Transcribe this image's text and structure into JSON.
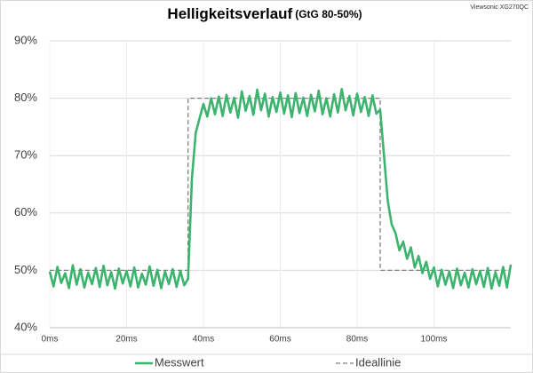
{
  "chart_data": {
    "type": "line",
    "title": "Helligkeitsverlauf",
    "subtitle": "(GtG 80-50%)",
    "source": "Viewsonic XG270QC",
    "xlim": [
      0,
      120
    ],
    "xticks": [
      {
        "value": 0,
        "label": "0ms"
      },
      {
        "value": 20,
        "label": "20ms"
      },
      {
        "value": 40,
        "label": "40ms"
      },
      {
        "value": 60,
        "label": "60ms"
      },
      {
        "value": 80,
        "label": "80ms"
      },
      {
        "value": 100,
        "label": "100ms"
      }
    ],
    "ylim": [
      40,
      90
    ],
    "yticks": [
      {
        "value": 40,
        "label": "40%"
      },
      {
        "value": 50,
        "label": "50%"
      },
      {
        "value": 60,
        "label": "60%"
      },
      {
        "value": 70,
        "label": "70%"
      },
      {
        "value": 80,
        "label": "80%"
      },
      {
        "value": 90,
        "label": "90%"
      }
    ],
    "grid": true,
    "legend": "bottom",
    "series": [
      {
        "name": "Ideallinie",
        "color": "#808080",
        "dashed": true,
        "x": [
          0,
          36,
          36,
          86,
          86,
          120
        ],
        "values": [
          50,
          50,
          80,
          80,
          50,
          50
        ]
      },
      {
        "name": "Messwert",
        "color": "#3cb46e",
        "x": [
          0,
          1,
          2,
          3,
          4,
          5,
          6,
          7,
          8,
          9,
          10,
          11,
          12,
          13,
          14,
          15,
          16,
          17,
          18,
          19,
          20,
          21,
          22,
          23,
          24,
          25,
          26,
          27,
          28,
          29,
          30,
          31,
          32,
          33,
          34,
          35,
          36,
          37,
          38,
          39,
          40,
          41,
          42,
          43,
          44,
          45,
          46,
          47,
          48,
          49,
          50,
          51,
          52,
          53,
          54,
          55,
          56,
          57,
          58,
          59,
          60,
          61,
          62,
          63,
          64,
          65,
          66,
          67,
          68,
          69,
          70,
          71,
          72,
          73,
          74,
          75,
          76,
          77,
          78,
          79,
          80,
          81,
          82,
          83,
          84,
          85,
          86,
          87,
          88,
          89,
          90,
          91,
          92,
          93,
          94,
          95,
          96,
          97,
          98,
          99,
          100,
          101,
          102,
          103,
          104,
          105,
          106,
          107,
          108,
          109,
          110,
          111,
          112,
          113,
          114,
          115,
          116,
          117,
          118,
          119,
          120
        ],
        "values": [
          49.8,
          47.2,
          50.6,
          47.8,
          49.5,
          46.9,
          50.9,
          47.5,
          50.2,
          47.0,
          49.6,
          47.6,
          50.4,
          47.1,
          50.8,
          47.4,
          49.7,
          46.8,
          50.3,
          47.7,
          49.9,
          47.2,
          50.5,
          47.0,
          49.4,
          47.5,
          50.7,
          47.3,
          50.1,
          46.9,
          49.8,
          47.6,
          50.2,
          47.1,
          49.9,
          47.4,
          48.5,
          66,
          74,
          76.5,
          79,
          76.8,
          80,
          77.2,
          80.3,
          76.9,
          80.6,
          77.5,
          80.1,
          76.6,
          81.2,
          77.8,
          80.4,
          77.1,
          81.5,
          77.9,
          80.8,
          76.8,
          80.2,
          77.6,
          81.0,
          77.3,
          80.5,
          76.7,
          80.9,
          77.4,
          80.1,
          76.9,
          80.6,
          77.7,
          81.3,
          77.2,
          80.0,
          76.8,
          80.7,
          77.5,
          81.6,
          77.9,
          80.4,
          77.0,
          80.8,
          77.6,
          80.2,
          76.9,
          80.5,
          77.3,
          78,
          70,
          62,
          58,
          56.5,
          53.5,
          55,
          52,
          54,
          50.5,
          52.5,
          49.5,
          51.5,
          48.5,
          50.5,
          47.2,
          50.1,
          47.5,
          49.8,
          46.9,
          50.3,
          47.4,
          49.6,
          47.0,
          50.2,
          47.6,
          49.9,
          47.1,
          50.4,
          46.8,
          49.7,
          47.3,
          50.6,
          47.0,
          51.0
        ]
      }
    ]
  }
}
